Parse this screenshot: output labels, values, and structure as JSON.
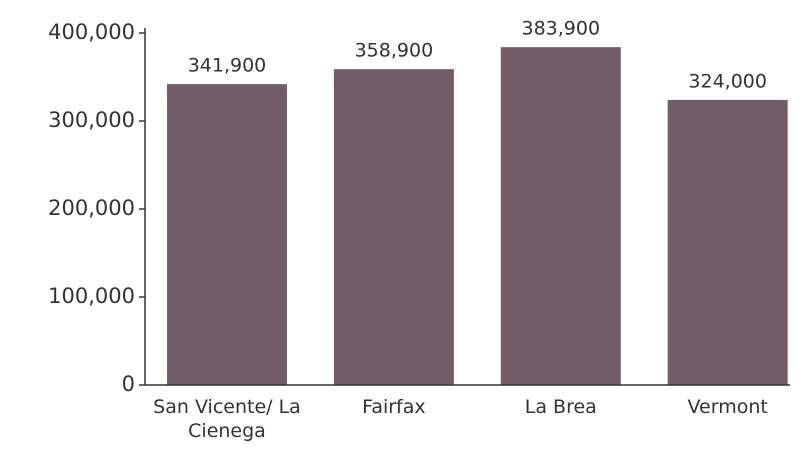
{
  "chart_data": {
    "type": "bar",
    "categories": [
      "San Vicente/ La Cienega",
      "Fairfax",
      "La Brea",
      "Vermont"
    ],
    "values": [
      341900,
      358900,
      383900,
      324000
    ],
    "value_labels": [
      "341,900",
      "358,900",
      "383,900",
      "324,000"
    ],
    "color": "#725c68",
    "ylim": [
      0,
      400000
    ],
    "yticks": [
      0,
      {
        "value": 100000,
        "label": "100,000"
      },
      {
        "value": 200000,
        "label": "200,000"
      },
      {
        "value": 300000,
        "label": "300,000"
      },
      {
        "value": 400000,
        "label": "400,000"
      }
    ],
    "grid": false
  }
}
